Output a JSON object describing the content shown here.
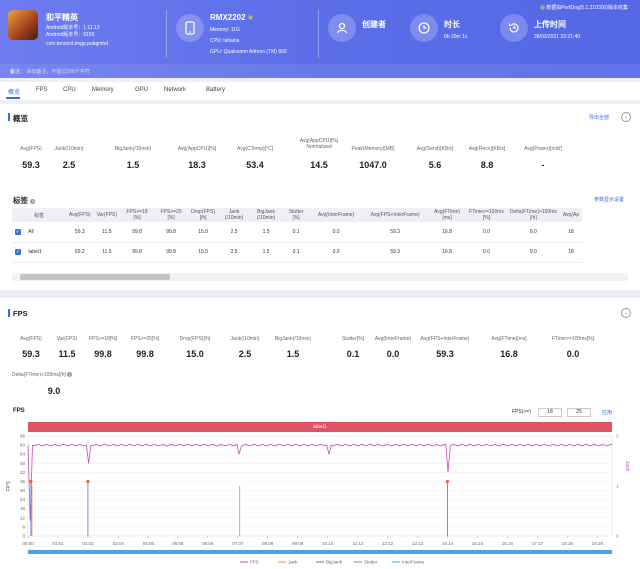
{
  "header": {
    "app": {
      "name": "和平精英",
      "android_version": "Android版本号：1.11.13",
      "android_build": "Android版本号：9150",
      "package": "com.tencent.tmgp.pubgmhd"
    },
    "device": {
      "model": "RMX2202",
      "memory": "Memory: 11G",
      "cpu": "CPU: lahaina",
      "gpu": "GPU: Qualcomm Adreno (TM) 660"
    },
    "creator": {
      "label": "创建者"
    },
    "duration": {
      "label": "时长",
      "value": "0h 20m 1s"
    },
    "upload": {
      "label": "上传时间",
      "value": "28/03/2021 22:21:40"
    },
    "version_note": "数据由PerfDog(5.1.210300)版本收集",
    "note_label": "备注：",
    "note_placeholder": "添加备注，不能过200个字符"
  },
  "tabs": [
    "概览",
    "FPS",
    "CPU",
    "Memory",
    "GPU",
    "Network",
    "Battery"
  ],
  "overview": {
    "title": "概览",
    "export_link": "导出全部",
    "metrics": [
      {
        "label": "Avg(FPS)",
        "value": "59.3"
      },
      {
        "label": "Jank(/10min)",
        "value": "2.5"
      },
      {
        "label": "BigJank(/10min)",
        "value": "1.5"
      },
      {
        "label": "Avg(AppCPU)[%]",
        "value": "18.3"
      },
      {
        "label": "Avg(CTemp)[°C]",
        "value": "53.4"
      },
      {
        "label": "Avg(AppCPU)[%] Normalized",
        "value": "14.5"
      },
      {
        "label": "Peak(Memory)[MB]",
        "value": "1047.0"
      },
      {
        "label": "Avg(Send)[KB/s]",
        "value": "5.6"
      },
      {
        "label": "Avg(Recv)[KB/s]",
        "value": "8.8"
      },
      {
        "label": "Avg(Power)[mW]",
        "value": "-"
      }
    ]
  },
  "tags": {
    "title": "标签",
    "settings_link": "参数显示设置",
    "columns": [
      "标签",
      "Avg(FPS)",
      "Var(FPS)",
      "FPS>=18 [%]",
      "FPS>=25 [%]",
      "Drop(FPS) [/h]",
      "Jank (/10min)",
      "BigJank (/10min)",
      "Stutter [%]",
      "Avg(InterFrame)",
      "Avg(FPS+InterFrame)",
      "Avg(FTime) [ms]",
      "FTime>=100ms [%]",
      "Delta(FTime)>100ms [/h]",
      "Avg(Ap"
    ],
    "rows": [
      {
        "name": "All",
        "cells": [
          "59.3",
          "11.5",
          "99.8",
          "99.8",
          "15.0",
          "2.5",
          "1.5",
          "0.1",
          "0.0",
          "59.3",
          "16.8",
          "0.0",
          "9.0",
          "18"
        ]
      },
      {
        "name": "label1",
        "cells": [
          "59.2",
          "11.5",
          "99.8",
          "99.8",
          "15.0",
          "2.5",
          "1.5",
          "0.1",
          "0.0",
          "59.3",
          "16.8",
          "0.0",
          "9.0",
          "18"
        ]
      }
    ]
  },
  "fps_section": {
    "title": "FPS",
    "metrics": [
      {
        "label": "Avg(FPS)",
        "value": "59.3"
      },
      {
        "label": "Var(FPS)",
        "value": "11.5"
      },
      {
        "label": "FPS>=18[%]",
        "value": "99.8"
      },
      {
        "label": "FPS>=25[%]",
        "value": "99.8"
      },
      {
        "label": "Drop(FPS)[/h]",
        "value": "15.0"
      },
      {
        "label": "Jank(/10min)",
        "value": "2.5"
      },
      {
        "label": "BigJank(/10min)",
        "value": "1.5"
      },
      {
        "label": "Stutter[%]",
        "value": "0.1"
      },
      {
        "label": "Avg(InterFrame)",
        "value": "0.0"
      },
      {
        "label": "Avg(FPS+InterFrame)",
        "value": "59.3"
      },
      {
        "label": "Avg(FTime)[ms]",
        "value": "16.8"
      },
      {
        "label": "FTime>=100ms[%]",
        "value": "0.0"
      }
    ],
    "extra_metric": {
      "label": "Delta(FTime)>100ms[/h]",
      "value": "9.0"
    },
    "chart_title": "FPS",
    "fps_filter_label": "FPS(>=)",
    "fps_filter_values": [
      "18",
      "25"
    ],
    "apply_link": "应用"
  },
  "chart_data": {
    "type": "line",
    "title": "FPS",
    "band_label": "label1",
    "ylabel_left": "FPS",
    "ylabel_right": "Jank",
    "ylim_left": [
      0,
      66
    ],
    "y_ticks_left": [
      0,
      6,
      12,
      18,
      24,
      30,
      36,
      42,
      48,
      54,
      60,
      66
    ],
    "y_ticks_right": [
      0,
      1,
      2
    ],
    "x_ticks": [
      "00:00",
      "01:01",
      "02:02",
      "03:04",
      "04:05",
      "05:05",
      "06:06",
      "07:07",
      "08:08",
      "09:09",
      "10:10",
      "11:12",
      "12:12",
      "13:13",
      "14:14",
      "15:15",
      "16:16",
      "17:17",
      "18:18",
      "19:19"
    ],
    "series": [
      {
        "name": "FPS",
        "color": "#c54fb8",
        "baseline": 60,
        "dips": [
          {
            "x": "00:06",
            "y": 10
          },
          {
            "x": "02:02",
            "y": 48
          },
          {
            "x": "07:09",
            "y": 54
          },
          {
            "x": "10:13",
            "y": 54
          },
          {
            "x": "14:14",
            "y": 42
          }
        ]
      },
      {
        "name": "Jank",
        "color": "#f08a3a",
        "spikes": [
          "00:06",
          "07:09"
        ]
      },
      {
        "name": "BigJank",
        "color": "#5a6fd8",
        "spikes": [
          "00:06",
          "02:02",
          "14:14"
        ]
      },
      {
        "name": "Stutter",
        "color": "#888888"
      },
      {
        "name": "InterFrame",
        "color": "#4aa3e8"
      }
    ],
    "legend": "bottom"
  },
  "colors": {
    "accent": "#3c6be8",
    "header": "#5b6ee8",
    "band": "#e05364"
  }
}
